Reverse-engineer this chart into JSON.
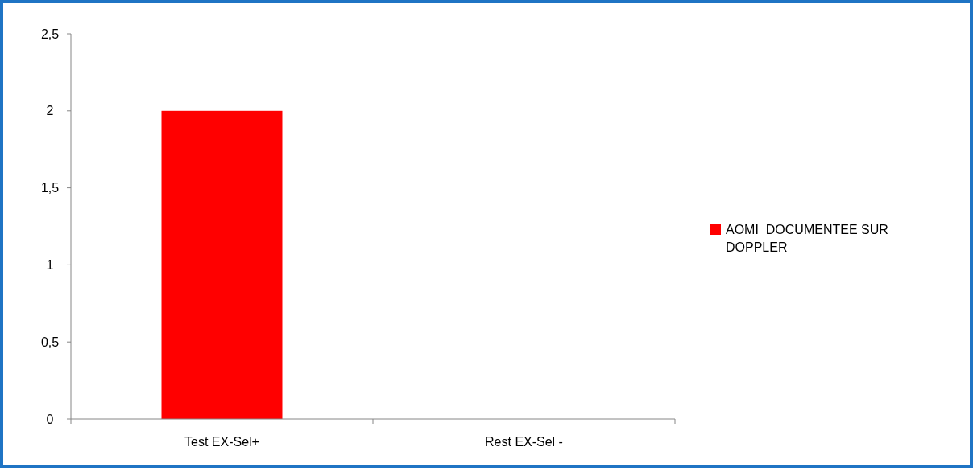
{
  "chart_data": {
    "type": "bar",
    "categories": [
      "Test EX-Sel+",
      "Rest EX-Sel -"
    ],
    "series": [
      {
        "name": "AOMI  DOCUMENTEE SUR DOPPLER",
        "color": "#ff0000",
        "values": [
          2,
          0
        ]
      }
    ],
    "ylim": [
      0,
      2.5
    ],
    "yticks": [
      0,
      {
        "value": 0.5,
        "label": "0,5"
      },
      1,
      {
        "value": 1.5,
        "label": "1,5"
      },
      2,
      {
        "value": 2.5,
        "label": "2,5"
      }
    ],
    "grid": false,
    "legend": "right"
  }
}
